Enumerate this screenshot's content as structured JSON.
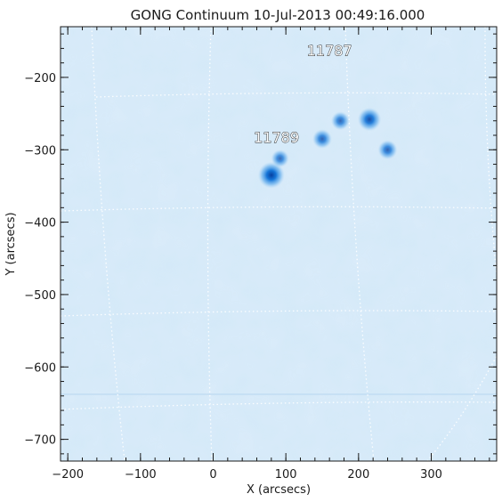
{
  "title": "GONG Continuum 10-Jul-2013 00:49:16.000",
  "axes": {
    "xlabel": "X (arcsecs)",
    "ylabel": "Y (arcsecs)",
    "xlim": [
      -210,
      390
    ],
    "ylim": [
      -730,
      -130
    ],
    "xticks": [
      {
        "value": -200,
        "label": "−200"
      },
      {
        "value": -100,
        "label": "−100"
      },
      {
        "value": 0,
        "label": "0"
      },
      {
        "value": 100,
        "label": "100"
      },
      {
        "value": 200,
        "label": "200"
      },
      {
        "value": 300,
        "label": "300"
      }
    ],
    "yticks": [
      {
        "value": -200,
        "label": "−200"
      },
      {
        "value": -300,
        "label": "−300"
      },
      {
        "value": -400,
        "label": "−400"
      },
      {
        "value": -500,
        "label": "−500"
      },
      {
        "value": -600,
        "label": "−600"
      },
      {
        "value": -700,
        "label": "−700"
      }
    ]
  },
  "regions": [
    {
      "id": "11787",
      "label": "11787",
      "x": 160,
      "y": -170
    },
    {
      "id": "11789",
      "label": "11789",
      "x": 87,
      "y": -290
    }
  ],
  "sunspots": [
    {
      "x": 80,
      "y": -335,
      "strength": 1.0
    },
    {
      "x": 92,
      "y": -312,
      "strength": 0.45
    },
    {
      "x": 150,
      "y": -285,
      "strength": 0.55
    },
    {
      "x": 175,
      "y": -260,
      "strength": 0.5
    },
    {
      "x": 215,
      "y": -258,
      "strength": 0.8
    },
    {
      "x": 240,
      "y": -300,
      "strength": 0.55
    }
  ],
  "colors": {
    "background": "#ffffff",
    "disk": "#cfe6f8",
    "disk_light": "#dcedfa",
    "spot": "#0b6fd6",
    "grid": "#ffffff",
    "text": "#1a1a1a"
  }
}
